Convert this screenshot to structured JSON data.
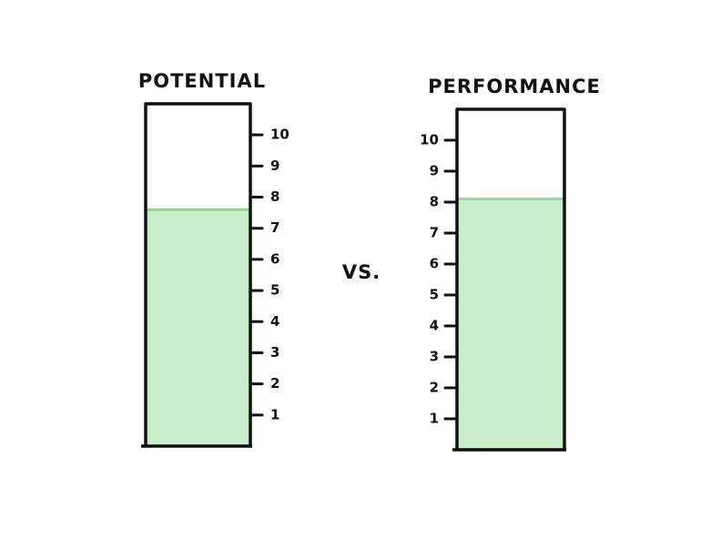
{
  "chart_data": [
    {
      "type": "bar",
      "title": "POTENTIAL",
      "values": [
        7.6
      ],
      "color": "#c8edc8",
      "ylim": [
        0,
        11
      ],
      "yticks": [
        1,
        2,
        3,
        4,
        5,
        6,
        7,
        8,
        9,
        10
      ]
    },
    {
      "type": "bar",
      "title": "PERFORMANCE",
      "values": [
        8.1
      ],
      "color": "#c8edc8",
      "ylim": [
        0,
        11
      ],
      "yticks": [
        1,
        2,
        3,
        4,
        5,
        6,
        7,
        8,
        9,
        10
      ]
    }
  ],
  "connector_text": "VS."
}
